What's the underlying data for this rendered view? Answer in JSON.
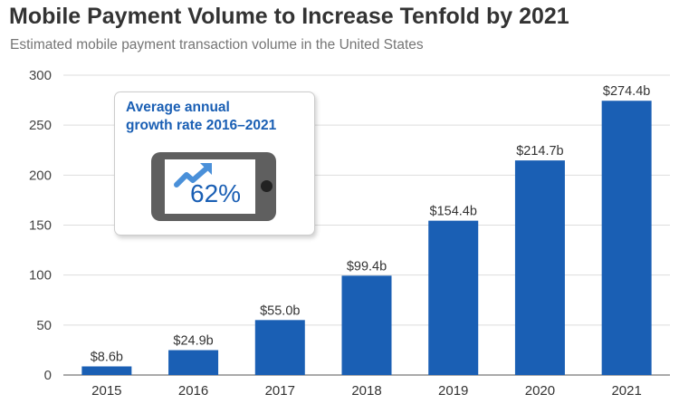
{
  "title": "Mobile Payment Volume to Increase Tenfold by 2021",
  "subtitle": "Estimated mobile payment transaction volume in the United States",
  "callout": {
    "title_line1": "Average annual",
    "title_line2": "growth rate 2016–2021",
    "value": "62%",
    "icon": "phone-with-trend-arrow-icon"
  },
  "colors": {
    "bar": "#1a5fb4",
    "accent": "#1a5fb4",
    "arrow": "#4a90d9"
  },
  "chart_data": {
    "type": "bar",
    "categories": [
      "2015",
      "2016",
      "2017",
      "2018",
      "2019",
      "2020",
      "2021"
    ],
    "values": [
      8.6,
      24.9,
      55.0,
      99.4,
      154.4,
      214.7,
      274.4
    ],
    "data_labels": [
      "$8.6b",
      "$24.9b",
      "$55.0b",
      "$99.4b",
      "$154.4b",
      "$214.7b",
      "$274.4b"
    ],
    "title": "Mobile Payment Volume to Increase Tenfold by 2021",
    "subtitle": "Estimated mobile payment transaction volume in the United States",
    "xlabel": "",
    "ylabel": "",
    "ylim": [
      0,
      300
    ],
    "yticks": [
      0,
      50,
      100,
      150,
      200,
      250,
      300
    ],
    "grid": true,
    "legend": "none"
  }
}
